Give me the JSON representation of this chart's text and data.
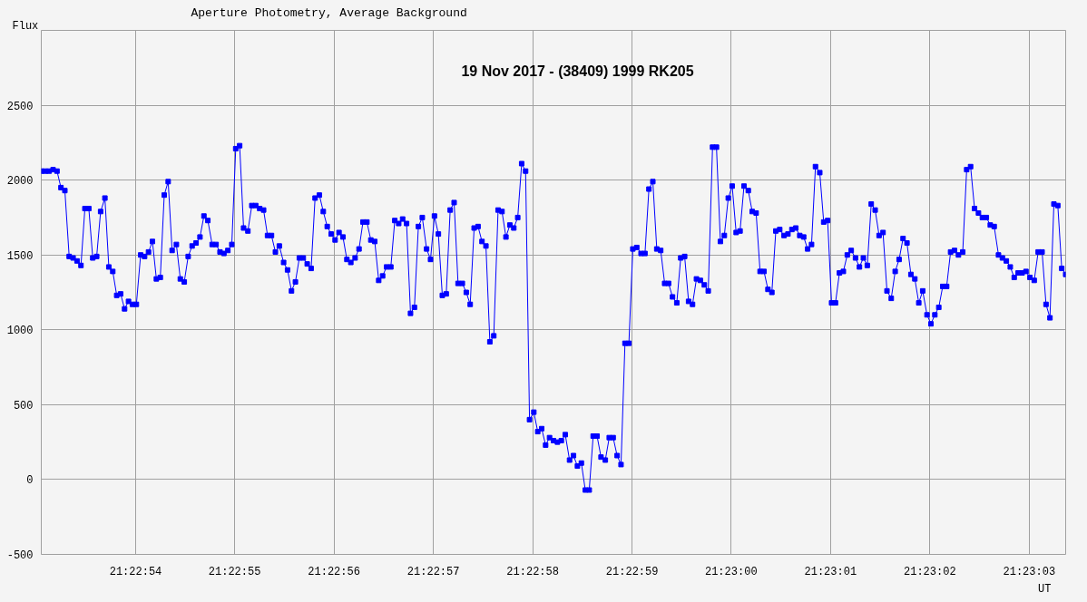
{
  "chart_data": {
    "type": "line",
    "title": "19 Nov 2017 - (38409) 1999 RK205",
    "subtitle": "Aperture Photometry, Average Background",
    "xlabel": "UT",
    "ylabel": "Flux",
    "x": [
      21.381403,
      21.381414,
      21.381425,
      21.381436,
      21.381447,
      21.381458,
      21.381469,
      21.381481,
      21.381492,
      21.381503,
      21.381514,
      21.381525,
      21.381536,
      21.381547,
      21.381558,
      21.381569,
      21.381581,
      21.381592,
      21.381603,
      21.381614,
      21.381625,
      21.381636,
      21.381647,
      21.381658,
      21.381669,
      21.381681,
      21.381692,
      21.381703,
      21.381714,
      21.381725,
      21.381736,
      21.381747,
      21.381758,
      21.381769,
      21.381781,
      21.381792,
      21.381803,
      21.381814,
      21.381825,
      21.381836,
      21.381847,
      21.381858,
      21.381869,
      21.381881,
      21.381892,
      21.381903,
      21.381914,
      21.381925,
      21.381936,
      21.381947,
      21.381958,
      21.381969,
      21.381981,
      21.381992,
      21.382003,
      21.382014,
      21.382025,
      21.382036,
      21.382047,
      21.382058,
      21.382069,
      21.382081,
      21.382092,
      21.382103,
      21.382114,
      21.382125,
      21.382136,
      21.382147,
      21.382158,
      21.382169,
      21.382181,
      21.382192,
      21.382203,
      21.382214,
      21.382225,
      21.382236,
      21.382247,
      21.382258,
      21.382269,
      21.382281,
      21.382292,
      21.382303,
      21.382314,
      21.382325,
      21.382336,
      21.382347,
      21.382358,
      21.382369,
      21.382381,
      21.382392,
      21.382403,
      21.382414,
      21.382425,
      21.382436,
      21.382447,
      21.382458,
      21.382469,
      21.382481,
      21.382492,
      21.382503,
      21.382514,
      21.382525,
      21.382536,
      21.382547,
      21.382558,
      21.382569,
      21.382581,
      21.382592,
      21.382603,
      21.382614,
      21.382625,
      21.382636,
      21.382647,
      21.382658,
      21.382669,
      21.382681,
      21.382692,
      21.382703,
      21.382714,
      21.382725,
      21.382736,
      21.382747,
      21.382758,
      21.382769,
      21.382781,
      21.382792,
      21.382803,
      21.382814,
      21.382825,
      21.382836,
      21.382847,
      21.382858,
      21.382869,
      21.382881,
      21.382892,
      21.382903,
      21.382914,
      21.382925,
      21.382936,
      21.382947,
      21.382958,
      21.382969,
      21.382981,
      21.382992,
      21.383003,
      21.383014,
      21.383025,
      21.383036,
      21.383047,
      21.383058,
      21.383069,
      21.383081,
      21.383092,
      21.383103,
      21.383114,
      21.383125,
      21.383136,
      21.383147,
      21.383158,
      21.383169,
      21.383181,
      21.383192,
      21.383203,
      21.383214,
      21.383225,
      21.383236,
      21.383247,
      21.383258,
      21.383269,
      21.383281,
      21.383292,
      21.383303,
      21.383314,
      21.383325,
      21.383336,
      21.383347,
      21.383358,
      21.383369,
      21.383381,
      21.383392,
      21.383403,
      21.383414,
      21.383425,
      21.383436,
      21.383447,
      21.383458,
      21.383469,
      21.383481,
      21.383492,
      21.383503,
      21.383514,
      21.383525,
      21.383536,
      21.383547,
      21.383558,
      21.383569,
      21.383581,
      21.383592,
      21.383603,
      21.383614,
      21.383625,
      21.383636,
      21.383647,
      21.383658,
      21.383669,
      21.383681,
      21.383692,
      21.383703,
      21.383714,
      21.383725,
      21.383736,
      21.383747,
      21.383758,
      21.383769,
      21.383781,
      21.383792,
      21.383803,
      21.383814,
      21.383825,
      21.383836,
      21.383847,
      21.383858,
      21.383869,
      21.383881,
      21.383892,
      21.383903,
      21.383914,
      21.383925,
      21.383936,
      21.383947,
      21.383958,
      21.383969,
      21.383981,
      21.383992,
      21.384003,
      21.384014,
      21.384025,
      21.384036,
      21.384047,
      21.384058,
      21.384069,
      21.384081,
      21.384092,
      21.384103,
      21.384114,
      21.384125,
      21.384136,
      21.384147,
      21.384158,
      21.384169,
      21.384181,
      21.384192,
      21.384203,
      21.384214,
      21.384225,
      21.384236,
      21.384247,
      21.384258,
      21.384269
    ],
    "series": [
      {
        "color": "#0000ff",
        "values": [
          2060,
          2060,
          2060,
          2070,
          2060,
          1950,
          1930,
          1490,
          1480,
          1460,
          1430,
          1810,
          1810,
          1480,
          1490,
          1790,
          1880,
          1420,
          1390,
          1230,
          1240,
          1140,
          1190,
          1170,
          1170,
          1500,
          1490,
          1520,
          1590,
          1340,
          1350,
          1900,
          1990,
          1530,
          1570,
          1340,
          1320,
          1490,
          1560,
          1580,
          1620,
          1760,
          1730,
          1570,
          1570,
          1520,
          1510,
          1530,
          1570,
          2210,
          2230,
          1680,
          1660,
          1830,
          1830,
          1810,
          1800,
          1630,
          1630,
          1520,
          1560,
          1450,
          1400,
          1260,
          1320,
          1480,
          1480,
          1440,
          1410,
          1880,
          1900,
          1790,
          1690,
          1640,
          1600,
          1650,
          1620,
          1470,
          1450,
          1480,
          1540,
          1720,
          1720,
          1600,
          1590,
          1330,
          1360,
          1420,
          1420,
          1730,
          1710,
          1740,
          1710,
          1110,
          1150,
          1690,
          1750,
          1540,
          1470,
          1760,
          1640,
          1230,
          1240,
          1800,
          1850,
          1310,
          1310,
          1250,
          1170,
          1680,
          1690,
          1590,
          1560,
          920,
          960,
          1800,
          1790,
          1620,
          1700,
          1680,
          1750,
          2110,
          2060,
          400,
          450,
          320,
          340,
          230,
          280,
          260,
          250,
          260,
          300,
          130,
          160,
          90,
          110,
          -70,
          -70,
          290,
          290,
          150,
          130,
          280,
          280,
          160,
          100,
          910,
          910,
          1540,
          1550,
          1510,
          1510,
          1940,
          1990,
          1540,
          1530,
          1310,
          1310,
          1220,
          1180,
          1480,
          1490,
          1190,
          1170,
          1340,
          1330,
          1300,
          1260,
          2220,
          2220,
          1590,
          1630,
          1880,
          1960,
          1650,
          1660,
          1960,
          1930,
          1790,
          1780,
          1390,
          1390,
          1270,
          1250,
          1660,
          1670,
          1630,
          1640,
          1670,
          1680,
          1630,
          1620,
          1540,
          1570,
          2090,
          2050,
          1720,
          1730,
          1180,
          1180,
          1380,
          1390,
          1500,
          1530,
          1480,
          1420,
          1480,
          1430,
          1840,
          1800,
          1630,
          1650,
          1260,
          1210,
          1390,
          1470,
          1610,
          1580,
          1370,
          1340,
          1180,
          1260,
          1100,
          1040,
          1100,
          1150,
          1290,
          1290,
          1520,
          1530,
          1500,
          1520,
          2070,
          2090,
          1810,
          1780,
          1750,
          1750,
          1700,
          1690,
          1500,
          1480,
          1460,
          1420,
          1350,
          1380,
          1380,
          1390,
          1350,
          1330,
          1520,
          1520,
          1170,
          1080,
          1840,
          1830,
          1410,
          1370
        ]
      }
    ],
    "xlim": [
      21.381403,
      21.384269
    ],
    "xticks": [
      {
        "value": 21.381667,
        "label": "21:22:54"
      },
      {
        "value": 21.381944,
        "label": "21:22:55"
      },
      {
        "value": 21.382222,
        "label": "21:22:56"
      },
      {
        "value": 21.3825,
        "label": "21:22:57"
      },
      {
        "value": 21.382778,
        "label": "21:22:58"
      },
      {
        "value": 21.383056,
        "label": "21:22:59"
      },
      {
        "value": 21.383333,
        "label": "21:23:00"
      },
      {
        "value": 21.383611,
        "label": "21:23:01"
      },
      {
        "value": 21.383889,
        "label": "21:23:02"
      },
      {
        "value": 21.384167,
        "label": "21:23:03"
      }
    ],
    "ylim": [
      -500,
      3000
    ],
    "yticks": [
      -500,
      0,
      500,
      1000,
      1500,
      2000,
      2500
    ],
    "grid": true,
    "marker": "square",
    "line_style": "solid"
  }
}
